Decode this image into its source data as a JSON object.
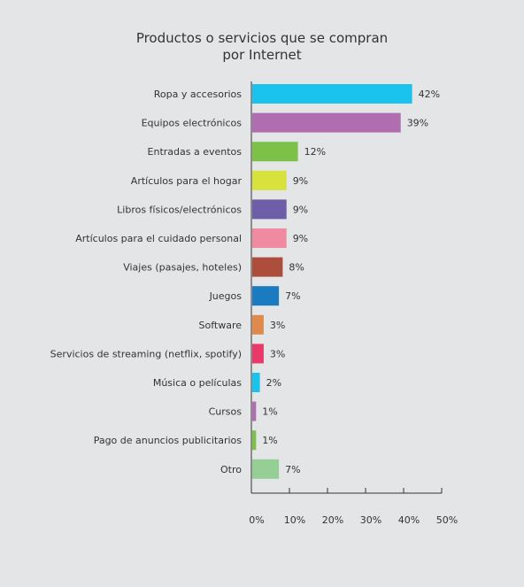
{
  "chart_data": {
    "type": "bar",
    "orientation": "horizontal",
    "title": [
      "Productos o servicios que se compran",
      "por Internet"
    ],
    "categories": [
      "Ropa y accesorios",
      "Equipos electrónicos",
      "Entradas a eventos",
      "Artículos para el hogar",
      "Libros físicos/electrónicos",
      "Artículos para el cuidado personal",
      "Viajes (pasajes, hoteles)",
      "Juegos",
      "Software",
      "Servicios de streaming (netflix, spotify)",
      "Música o películas",
      "Cursos",
      "Pago de anuncios publicitarios",
      "Otro"
    ],
    "values": [
      42,
      39,
      12,
      9,
      9,
      9,
      8,
      7,
      3,
      3,
      2,
      1,
      1,
      7
    ],
    "value_labels": [
      "42%",
      "39%",
      "12%",
      "9%",
      "9%",
      "9%",
      "8%",
      "7%",
      "3%",
      "3%",
      "2%",
      "1%",
      "1%",
      "7%"
    ],
    "colors": [
      "#1ac3ee",
      "#b06db0",
      "#7cc249",
      "#d8e23c",
      "#6e5ea8",
      "#f08aa0",
      "#ad4e3c",
      "#1b7bc1",
      "#df8a4a",
      "#e8396a",
      "#1ac3ee",
      "#b06db0",
      "#7cc249",
      "#96cf95"
    ],
    "xlim": [
      0,
      50
    ],
    "xticks": [
      0,
      10,
      20,
      30,
      40,
      50
    ],
    "xtick_labels": [
      "0%",
      "10%",
      "20%",
      "30%",
      "40%",
      "50%"
    ],
    "grid": false,
    "legend": "none"
  }
}
